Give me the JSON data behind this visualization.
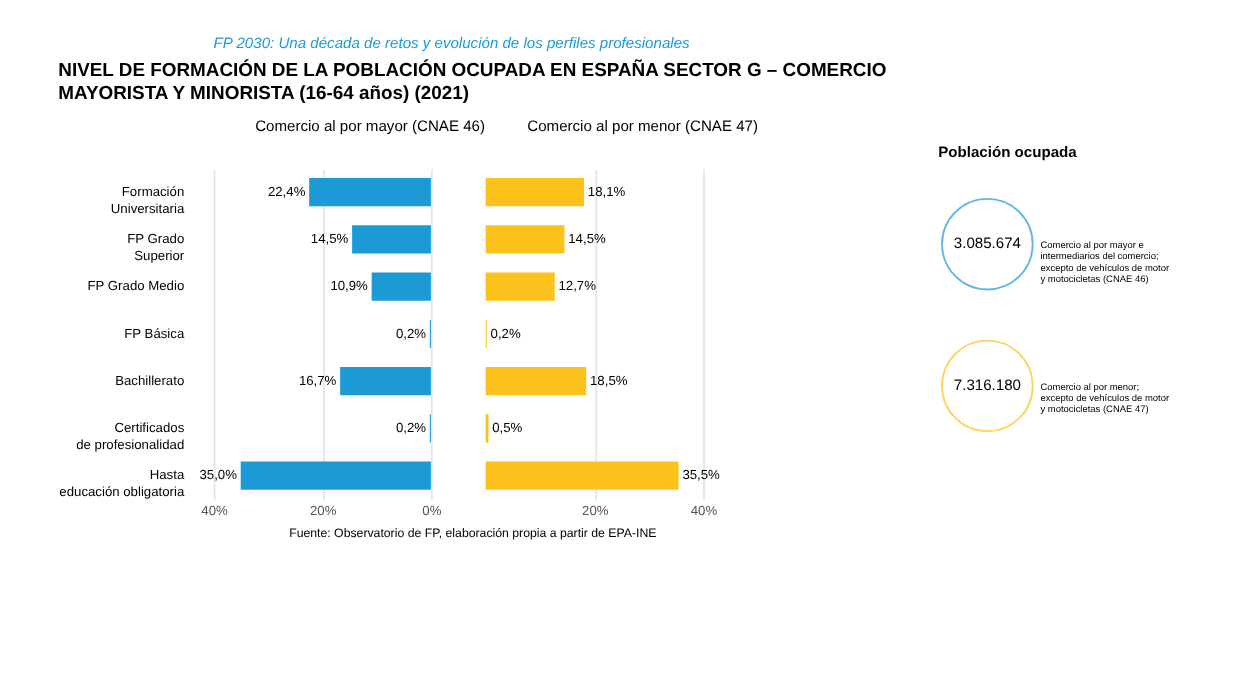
{
  "chart_data": [
    {
      "type": "bar",
      "orientation": "horizontal",
      "title": "NIVEL DE FORMACIÓN DE LA POBLACIÓN OCUPADA EN ESPAÑA SECTOR G – COMERCIO\nMAYORISTA Y MINORISTA (16-64 años) (2021)",
      "categories": [
        "Formación\nUniversitaria",
        "FP Grado\nSuperior",
        "FP Grado Medio",
        "FP Básica",
        "Bachillerato",
        "Certificados\nde profesionalidad",
        "Hasta\neducación obligatoria"
      ],
      "series": [
        {
          "name": "Comercio al por mayor (CNAE 46)",
          "color": "#1b9ad6",
          "values": [
            22.4,
            14.5,
            10.9,
            0.2,
            16.7,
            0.2,
            35.0
          ],
          "value_labels": [
            "22,4%",
            "14,5%",
            "10,9%",
            "0,2%",
            "16,7%",
            "0,2%",
            "35,0%"
          ]
        }
      ],
      "xlim": [
        40,
        0
      ],
      "xticks": [
        {
          "value": 40,
          "label": "40%"
        },
        {
          "value": 20,
          "label": "20%"
        },
        {
          "value": 0,
          "label": "0%"
        }
      ],
      "grid": "x",
      "legend": "top",
      "annotations": [
        "FP 2030: Una década de retos y evolución de los perfiles profesionales",
        "Fuente: Observatorio de FP, elaboración propia a partir de EPA-INE"
      ]
    },
    {
      "type": "bar",
      "orientation": "horizontal",
      "categories": [
        null,
        null,
        null,
        null,
        null,
        null,
        null
      ],
      "series": [
        {
          "name": "Comercio al por menor (CNAE 47)",
          "color": "#fcc21b",
          "values": [
            18.1,
            14.5,
            12.7,
            0.2,
            18.5,
            0.5,
            35.5
          ],
          "value_labels": [
            "18,1%",
            "14,5%",
            "12,7%",
            "0,2%",
            "18,5%",
            "0,5%",
            "35,5%"
          ]
        }
      ],
      "xlim": [
        0,
        40
      ],
      "xticks": [
        {
          "value": 20,
          "label": "20%"
        },
        {
          "value": 40,
          "label": "40%"
        }
      ],
      "grid": "x",
      "legend": "top",
      "tick_labels": "x"
    },
    {
      "type": "other",
      "title": "Población ocupada",
      "annotations": [
        "3.085.674",
        "Comercio al por mayor e\nintermediarios del comercio;\nexcepto de vehículos de motor\ny motocicletas (CNAE 46)",
        "7.316.180",
        "Comercio al por menor;\nexcepto de vehículos de motor\ny motocicletas (CNAE 47)"
      ]
    }
  ]
}
